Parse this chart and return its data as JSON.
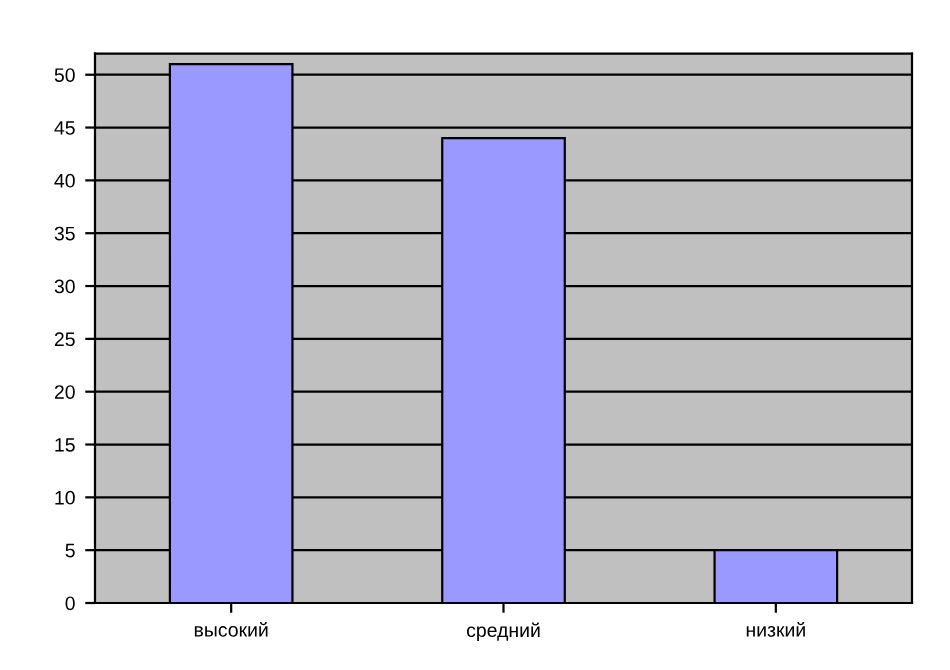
{
  "chart_data": {
    "type": "bar",
    "categories": [
      "высокий",
      "средний",
      "низкий"
    ],
    "values": [
      51,
      44,
      5
    ],
    "color": "#9999ff",
    "ylim": [
      0,
      52
    ],
    "yticks": [
      0,
      5,
      10,
      15,
      20,
      25,
      30,
      35,
      40,
      45,
      50
    ],
    "grid": "y",
    "legend": false
  }
}
